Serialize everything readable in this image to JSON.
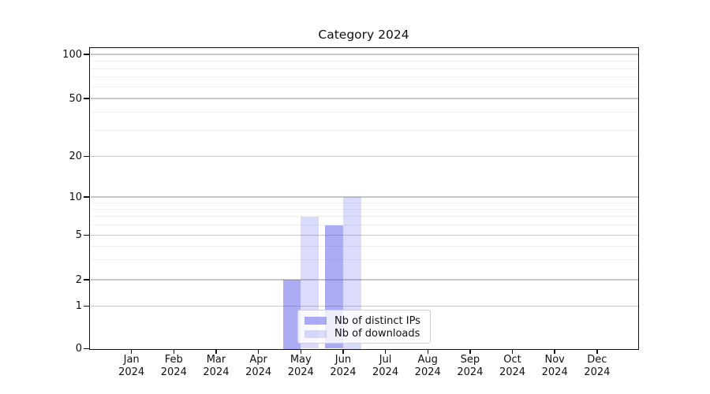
{
  "chart_data": {
    "type": "bar",
    "title": "Category 2024",
    "x_categories": [
      "Jan",
      "Feb",
      "Mar",
      "Apr",
      "May",
      "Jun",
      "Jul",
      "Aug",
      "Sep",
      "Oct",
      "Nov",
      "Dec"
    ],
    "x_year": "2024",
    "series": [
      {
        "name": "Nb of distinct IPs",
        "color": "#5a5aeb",
        "alpha": 0.5,
        "values": [
          0,
          0,
          0,
          0,
          2,
          6,
          0,
          0,
          0,
          0,
          0,
          0
        ]
      },
      {
        "name": "Nb of downloads",
        "color": "#5a5aeb",
        "alpha": 0.22,
        "values": [
          0,
          0,
          0,
          0,
          7,
          10,
          0,
          0,
          0,
          0,
          0,
          0
        ]
      }
    ],
    "y_axis": {
      "scale": "symlog",
      "ticks": [
        0,
        1,
        2,
        5,
        10,
        20,
        50,
        100
      ],
      "minor_ticks": [
        3,
        4,
        6,
        7,
        8,
        9,
        30,
        40,
        60,
        70,
        80,
        90
      ],
      "ylim": [
        0,
        112
      ]
    },
    "legend": {
      "labels": [
        "Nb of distinct IPs",
        "Nb of downloads"
      ],
      "position": "lower center"
    },
    "grid": true
  }
}
